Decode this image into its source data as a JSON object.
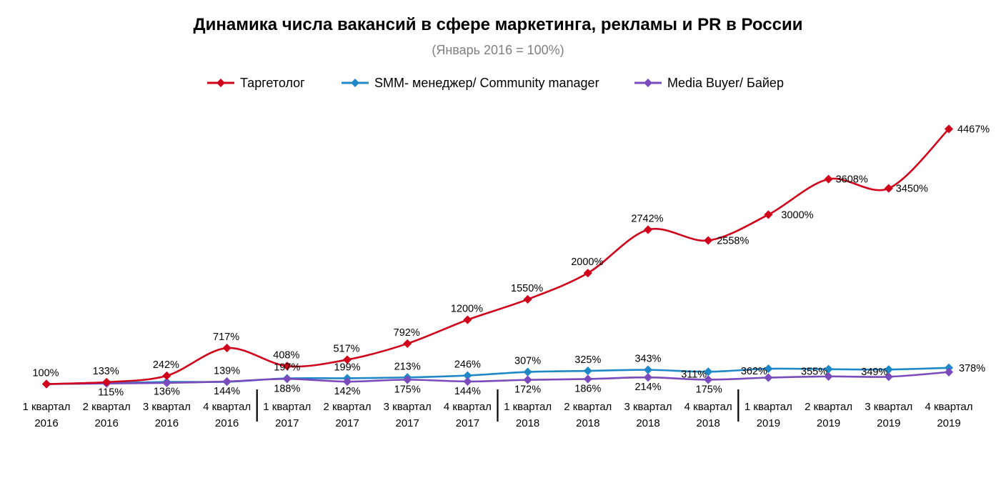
{
  "chart_data": {
    "type": "line",
    "title": "Динамика числа вакансий в сфере маркетинга, рекламы и PR в России",
    "subtitle": "(Январь 2016 = 100%)",
    "legend_position": "top",
    "categories": [
      [
        "1 квартал",
        "2016"
      ],
      [
        "2 квартал",
        "2016"
      ],
      [
        "3 квартал",
        "2016"
      ],
      [
        "4 квартал",
        "2016"
      ],
      [
        "1 квартал",
        "2017"
      ],
      [
        "2 квартал",
        "2017"
      ],
      [
        "3 квартал",
        "2017"
      ],
      [
        "4 квартал",
        "2017"
      ],
      [
        "1 квартал",
        "2018"
      ],
      [
        "2 квартал",
        "2018"
      ],
      [
        "3 квартал",
        "2018"
      ],
      [
        "4 квартал",
        "2018"
      ],
      [
        "1 квартал",
        "2019"
      ],
      [
        "2 квартал",
        "2019"
      ],
      [
        "3 квартал",
        "2019"
      ],
      [
        "4 квартал",
        "2019"
      ]
    ],
    "year_separators_after": [
      3,
      7,
      11
    ],
    "ylim": [
      0,
      4700
    ],
    "grid": false,
    "series": [
      {
        "name": "Таргетолог",
        "color": "#d0021b",
        "values": [
          100,
          133,
          242,
          717,
          408,
          517,
          792,
          1200,
          1550,
          2000,
          2742,
          2558,
          3000,
          3608,
          3450,
          4467
        ],
        "labels": [
          "100%",
          "133%",
          "242%",
          "717%",
          "408%",
          "517%",
          "792%",
          "1200%",
          "1550%",
          "2000%",
          "2742%",
          "2558%",
          "3000%",
          "3608%",
          "3450%",
          "4467%"
        ]
      },
      {
        "name": "SMM- менеджер/ Community manager",
        "color": "#1f88c7",
        "values": [
          100,
          115,
          136,
          139,
          197,
          199,
          213,
          246,
          307,
          325,
          343,
          311,
          362,
          355,
          349,
          378
        ],
        "labels": [
          "",
          "115%",
          "136%",
          "139%",
          "197%",
          "199%",
          "213%",
          "246%",
          "307%",
          "325%",
          "343%",
          "311%",
          "362%",
          "355%",
          "349%",
          "378%"
        ]
      },
      {
        "name": "Media Buyer/ Байер",
        "color": "#7a4bbd",
        "values": [
          100,
          110,
          120,
          144,
          188,
          142,
          175,
          144,
          172,
          186,
          214,
          175,
          210,
          230,
          225,
          305
        ],
        "labels": [
          "",
          "",
          "",
          "144%",
          "188%",
          "142%",
          "175%",
          "144%",
          "172%",
          "186%",
          "214%",
          "175%",
          "",
          "",
          "",
          ""
        ]
      }
    ]
  }
}
